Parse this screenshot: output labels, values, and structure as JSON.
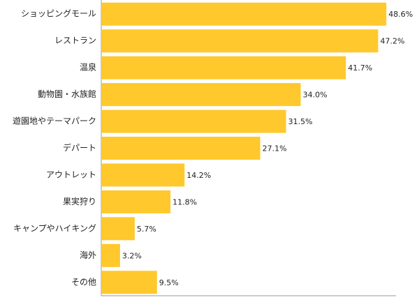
{
  "chart_data": {
    "type": "barh",
    "categories": [
      "ショッピングモール",
      "レストラン",
      "温泉",
      "動物園・水族館",
      "遊園地やテーマパーク",
      "デパート",
      "アウトレット",
      "果実狩り",
      "キャンプやハイキング",
      "海外",
      "その他"
    ],
    "values": [
      48.6,
      47.2,
      41.7,
      34.0,
      31.5,
      27.1,
      14.2,
      11.8,
      5.7,
      3.2,
      9.5
    ],
    "value_labels": [
      "48.6%",
      "47.2%",
      "41.7%",
      "34.0%",
      "31.5%",
      "27.1%",
      "14.2%",
      "11.8%",
      "5.7%",
      "3.2%",
      "9.5%"
    ],
    "color": "#ffc82c",
    "xlim": [
      0,
      50
    ]
  }
}
